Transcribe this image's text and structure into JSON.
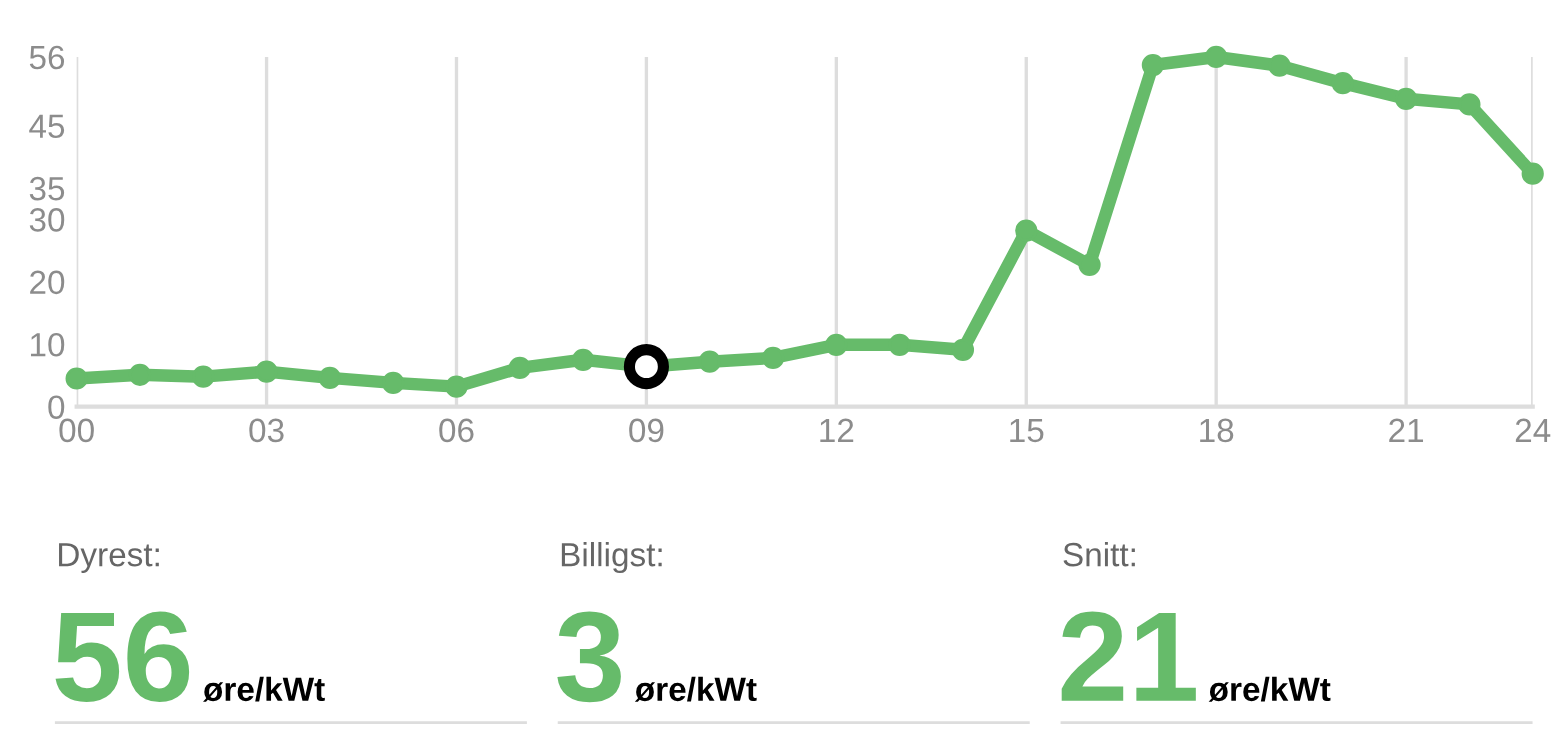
{
  "chart_data": {
    "type": "line",
    "categories": [
      "00",
      null,
      null,
      "03",
      null,
      null,
      "06",
      null,
      null,
      "09",
      null,
      null,
      "12",
      null,
      null,
      "15",
      null,
      null,
      "18",
      null,
      null,
      "21",
      null,
      "24"
    ],
    "series": [
      {
        "color": "#66bb6a",
        "values": [
          4.5,
          5.1,
          4.8,
          5.6,
          4.6,
          3.8,
          3.2,
          6.2,
          7.5,
          6.4,
          7.2,
          7.8,
          9.9,
          9.9,
          9.1,
          28.2,
          22.7,
          54.7,
          56,
          54.6,
          51.8,
          49.3,
          48.4,
          37.3
        ]
      },
      {
        "type": "scatter",
        "color": "#000000",
        "x": [
          "09"
        ],
        "values": [
          6.4
        ]
      }
    ],
    "ylim": [
      0,
      56
    ],
    "yticks": [
      0,
      10,
      20,
      30,
      35,
      45,
      56
    ],
    "grid": "x",
    "marker": "circle",
    "line_style": "solid",
    "annotations": [
      "Dyrest:",
      "56",
      "øre/kWt",
      "Billigst:",
      "3",
      "øre/kWt",
      "Snitt:",
      "21",
      "øre/kWt"
    ]
  }
}
